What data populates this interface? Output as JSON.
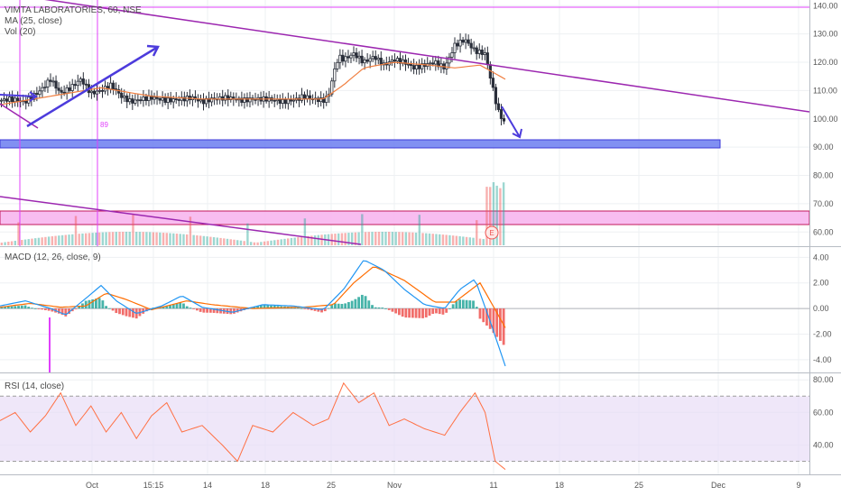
{
  "chart_data": [
    {
      "type": "candlestick",
      "title": "VIMTA LABORATORIES, 60, NSE",
      "indicator_labels": [
        "MA (25, close)",
        "Vol (20)"
      ],
      "ylim": [
        55,
        142
      ],
      "y_ticks": [
        "140.00",
        "130.00",
        "120.00",
        "110.00",
        "100.00",
        "90.00",
        "80.00",
        "70.00",
        "60.00"
      ],
      "x_ticks": [
        "Oct",
        "15:15",
        "14",
        "18",
        "25",
        "Nov",
        "11",
        "18",
        "25",
        "Dec",
        "9"
      ],
      "price_path": [
        {
          "t": 0.0,
          "v": 106.5
        },
        {
          "t": 0.02,
          "v": 107
        },
        {
          "t": 0.05,
          "v": 106
        },
        {
          "t": 0.08,
          "v": 110
        },
        {
          "t": 0.1,
          "v": 114
        },
        {
          "t": 0.12,
          "v": 109
        },
        {
          "t": 0.14,
          "v": 111
        },
        {
          "t": 0.16,
          "v": 114
        },
        {
          "t": 0.18,
          "v": 109
        },
        {
          "t": 0.2,
          "v": 110
        },
        {
          "t": 0.22,
          "v": 112
        },
        {
          "t": 0.24,
          "v": 108
        },
        {
          "t": 0.26,
          "v": 106
        },
        {
          "t": 0.28,
          "v": 107
        },
        {
          "t": 0.3,
          "v": 107.5
        },
        {
          "t": 0.33,
          "v": 106.5
        },
        {
          "t": 0.36,
          "v": 107
        },
        {
          "t": 0.38,
          "v": 107.5
        },
        {
          "t": 0.4,
          "v": 106
        },
        {
          "t": 0.42,
          "v": 107
        },
        {
          "t": 0.45,
          "v": 107.5
        },
        {
          "t": 0.48,
          "v": 106.5
        },
        {
          "t": 0.5,
          "v": 107
        },
        {
          "t": 0.53,
          "v": 107
        },
        {
          "t": 0.56,
          "v": 106
        },
        {
          "t": 0.59,
          "v": 107
        },
        {
          "t": 0.6,
          "v": 108
        },
        {
          "t": 0.62,
          "v": 107
        },
        {
          "t": 0.64,
          "v": 106.5
        },
        {
          "t": 0.65,
          "v": 108
        },
        {
          "t": 0.66,
          "v": 116
        },
        {
          "t": 0.67,
          "v": 122
        },
        {
          "t": 0.68,
          "v": 121
        },
        {
          "t": 0.7,
          "v": 123
        },
        {
          "t": 0.72,
          "v": 120
        },
        {
          "t": 0.74,
          "v": 122
        },
        {
          "t": 0.76,
          "v": 119
        },
        {
          "t": 0.78,
          "v": 121
        },
        {
          "t": 0.8,
          "v": 120
        },
        {
          "t": 0.82,
          "v": 118
        },
        {
          "t": 0.84,
          "v": 119
        },
        {
          "t": 0.86,
          "v": 120
        },
        {
          "t": 0.88,
          "v": 118
        },
        {
          "t": 0.9,
          "v": 126
        },
        {
          "t": 0.92,
          "v": 128
        },
        {
          "t": 0.94,
          "v": 124
        },
        {
          "t": 0.96,
          "v": 123
        },
        {
          "t": 0.975,
          "v": 111
        },
        {
          "t": 0.985,
          "v": 103
        },
        {
          "t": 1.0,
          "v": 98
        }
      ],
      "ma_path": [
        {
          "t": 0.0,
          "v": 105
        },
        {
          "t": 0.1,
          "v": 108
        },
        {
          "t": 0.2,
          "v": 111
        },
        {
          "t": 0.3,
          "v": 108
        },
        {
          "t": 0.4,
          "v": 107
        },
        {
          "t": 0.55,
          "v": 107
        },
        {
          "t": 0.64,
          "v": 107
        },
        {
          "t": 0.68,
          "v": 112
        },
        {
          "t": 0.72,
          "v": 118
        },
        {
          "t": 0.78,
          "v": 120
        },
        {
          "t": 0.85,
          "v": 119
        },
        {
          "t": 0.9,
          "v": 118
        },
        {
          "t": 0.95,
          "v": 119
        },
        {
          "t": 1.0,
          "v": 114
        }
      ],
      "annotations": [
        "89",
        "E"
      ]
    },
    {
      "type": "line",
      "title": "MACD (12, 26, close, 9)",
      "ylim": [
        -5,
        4.8
      ],
      "y_ticks": [
        "4.00",
        "2.00",
        "0.00",
        "-2.00",
        "-4.00"
      ],
      "macd": [
        {
          "t": 0.0,
          "v": 0.2
        },
        {
          "t": 0.05,
          "v": 0.6
        },
        {
          "t": 0.1,
          "v": 0
        },
        {
          "t": 0.13,
          "v": -0.5
        },
        {
          "t": 0.17,
          "v": 0.8
        },
        {
          "t": 0.2,
          "v": 1.8
        },
        {
          "t": 0.23,
          "v": 0.6
        },
        {
          "t": 0.27,
          "v": -0.4
        },
        {
          "t": 0.32,
          "v": 0.2
        },
        {
          "t": 0.36,
          "v": 1.0
        },
        {
          "t": 0.4,
          "v": 0.1
        },
        {
          "t": 0.46,
          "v": -0.3
        },
        {
          "t": 0.52,
          "v": 0.3
        },
        {
          "t": 0.58,
          "v": 0.2
        },
        {
          "t": 0.64,
          "v": -0.1
        },
        {
          "t": 0.68,
          "v": 1.5
        },
        {
          "t": 0.72,
          "v": 3.8
        },
        {
          "t": 0.76,
          "v": 3.0
        },
        {
          "t": 0.8,
          "v": 1.5
        },
        {
          "t": 0.84,
          "v": 0.3
        },
        {
          "t": 0.88,
          "v": 0.0
        },
        {
          "t": 0.91,
          "v": 1.5
        },
        {
          "t": 0.94,
          "v": 2.3
        },
        {
          "t": 0.97,
          "v": -1.0
        },
        {
          "t": 1.0,
          "v": -4.5
        }
      ],
      "signal": [
        {
          "t": 0.0,
          "v": 0.1
        },
        {
          "t": 0.06,
          "v": 0.4
        },
        {
          "t": 0.12,
          "v": 0.1
        },
        {
          "t": 0.17,
          "v": 0.2
        },
        {
          "t": 0.21,
          "v": 1.2
        },
        {
          "t": 0.25,
          "v": 0.7
        },
        {
          "t": 0.3,
          "v": -0.1
        },
        {
          "t": 0.37,
          "v": 0.6
        },
        {
          "t": 0.42,
          "v": 0.3
        },
        {
          "t": 0.5,
          "v": 0.0
        },
        {
          "t": 0.6,
          "v": 0.1
        },
        {
          "t": 0.66,
          "v": 0.3
        },
        {
          "t": 0.7,
          "v": 2.0
        },
        {
          "t": 0.74,
          "v": 3.3
        },
        {
          "t": 0.8,
          "v": 2.2
        },
        {
          "t": 0.86,
          "v": 0.5
        },
        {
          "t": 0.9,
          "v": 0.5
        },
        {
          "t": 0.95,
          "v": 2.0
        },
        {
          "t": 1.0,
          "v": -1.5
        }
      ]
    },
    {
      "type": "line",
      "title": "RSI (14, close)",
      "ylim": [
        22,
        84
      ],
      "y_ticks": [
        "80.00",
        "60.00",
        "40.00"
      ],
      "bands": [
        30,
        70
      ],
      "rsi": [
        {
          "t": 0.0,
          "v": 55
        },
        {
          "t": 0.03,
          "v": 60
        },
        {
          "t": 0.06,
          "v": 48
        },
        {
          "t": 0.09,
          "v": 58
        },
        {
          "t": 0.12,
          "v": 72
        },
        {
          "t": 0.15,
          "v": 52
        },
        {
          "t": 0.18,
          "v": 64
        },
        {
          "t": 0.21,
          "v": 48
        },
        {
          "t": 0.24,
          "v": 60
        },
        {
          "t": 0.27,
          "v": 44
        },
        {
          "t": 0.3,
          "v": 58
        },
        {
          "t": 0.33,
          "v": 66
        },
        {
          "t": 0.36,
          "v": 48
        },
        {
          "t": 0.4,
          "v": 52
        },
        {
          "t": 0.44,
          "v": 40
        },
        {
          "t": 0.47,
          "v": 30
        },
        {
          "t": 0.5,
          "v": 52
        },
        {
          "t": 0.54,
          "v": 48
        },
        {
          "t": 0.58,
          "v": 60
        },
        {
          "t": 0.62,
          "v": 52
        },
        {
          "t": 0.65,
          "v": 56
        },
        {
          "t": 0.68,
          "v": 78
        },
        {
          "t": 0.71,
          "v": 66
        },
        {
          "t": 0.74,
          "v": 72
        },
        {
          "t": 0.77,
          "v": 52
        },
        {
          "t": 0.8,
          "v": 56
        },
        {
          "t": 0.84,
          "v": 50
        },
        {
          "t": 0.88,
          "v": 46
        },
        {
          "t": 0.91,
          "v": 60
        },
        {
          "t": 0.94,
          "v": 72
        },
        {
          "t": 0.96,
          "v": 60
        },
        {
          "t": 0.98,
          "v": 30
        },
        {
          "t": 1.0,
          "v": 25
        }
      ]
    }
  ],
  "colors": {
    "up": "#26a69a",
    "down": "#ef5350",
    "ma": "#f07f41",
    "macd": "#2196f3",
    "signal": "#ff6d00",
    "trendline": "#9c27b0",
    "arrow": "#4c3bdc",
    "support_zone": "#6b7cf0",
    "resistance_zone": "#f7b6ee",
    "rsi": "#ff7043",
    "rsi_band": "#e8ddf7",
    "vertical_marker": "#e040fb"
  }
}
